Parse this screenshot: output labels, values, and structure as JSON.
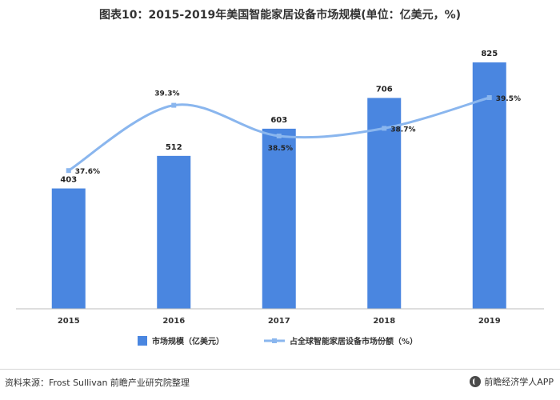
{
  "chart_data": {
    "type": "bar",
    "title": "图表10：2015-2019年美国智能家居设备市场规模(单位：亿美元，%)",
    "categories": [
      "2015",
      "2016",
      "2017",
      "2018",
      "2019"
    ],
    "series": [
      {
        "name": "市场规模（亿美元）",
        "kind": "bar",
        "axis": "left",
        "values": [
          403,
          512,
          603,
          706,
          825
        ],
        "labels": [
          "403",
          "512",
          "603",
          "706",
          "825"
        ],
        "color": "#4a86e0"
      },
      {
        "name": "占全球智能家居设备市场份额（%）",
        "kind": "line",
        "axis": "right",
        "values": [
          37.6,
          39.3,
          38.5,
          38.7,
          39.5
        ],
        "labels": [
          "37.6%",
          "39.3%",
          "38.5%",
          "38.7%",
          "39.5%"
        ],
        "color": "#8ab6ee"
      }
    ],
    "ylim": [
      0,
      900
    ],
    "y2lim": [
      34,
      41
    ],
    "grid": false,
    "legend": "bottom-center"
  },
  "footer": {
    "source": "资料来源：Frost Sullivan 前瞻产业研究院整理",
    "brand": "前瞻经济学人APP"
  }
}
